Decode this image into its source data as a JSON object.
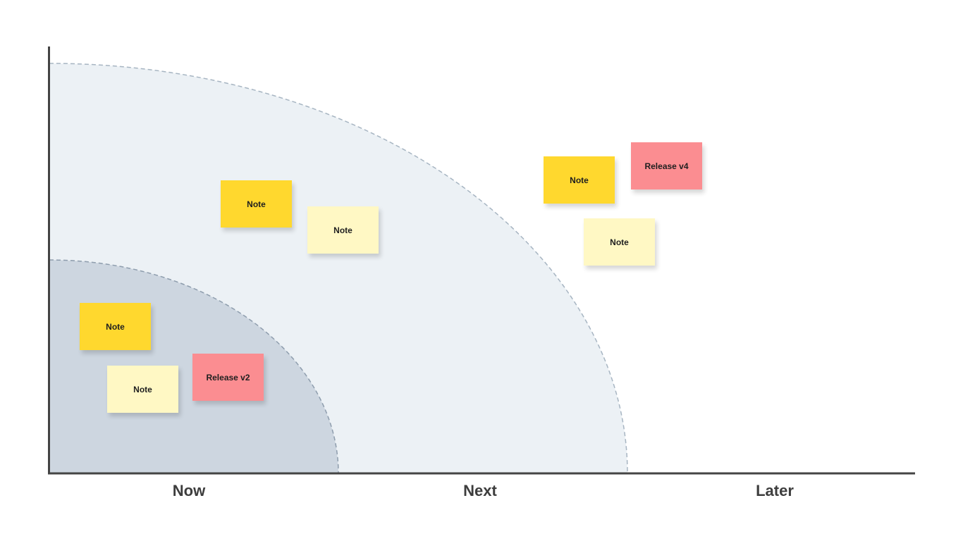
{
  "colors": {
    "now_zone": "#cdd6e0",
    "next_zone": "#ecf1f5",
    "zone_border": "#a7b5c2",
    "axis": "#444444",
    "note_yellow": "#ffd82e",
    "note_light_yellow": "#fff8c4",
    "note_red": "#fb8d91"
  },
  "axis": {
    "labels": [
      "Now",
      "Next",
      "Later"
    ]
  },
  "notes": [
    {
      "text": "Note",
      "color": "note_yellow"
    },
    {
      "text": "Note",
      "color": "note_light_yellow"
    },
    {
      "text": "Note",
      "color": "note_yellow"
    },
    {
      "text": "Note",
      "color": "note_light_yellow"
    },
    {
      "text": "Release v2",
      "color": "note_red"
    },
    {
      "text": "Note",
      "color": "note_yellow"
    },
    {
      "text": "Release v4",
      "color": "note_red"
    },
    {
      "text": "Note",
      "color": "note_light_yellow"
    }
  ]
}
